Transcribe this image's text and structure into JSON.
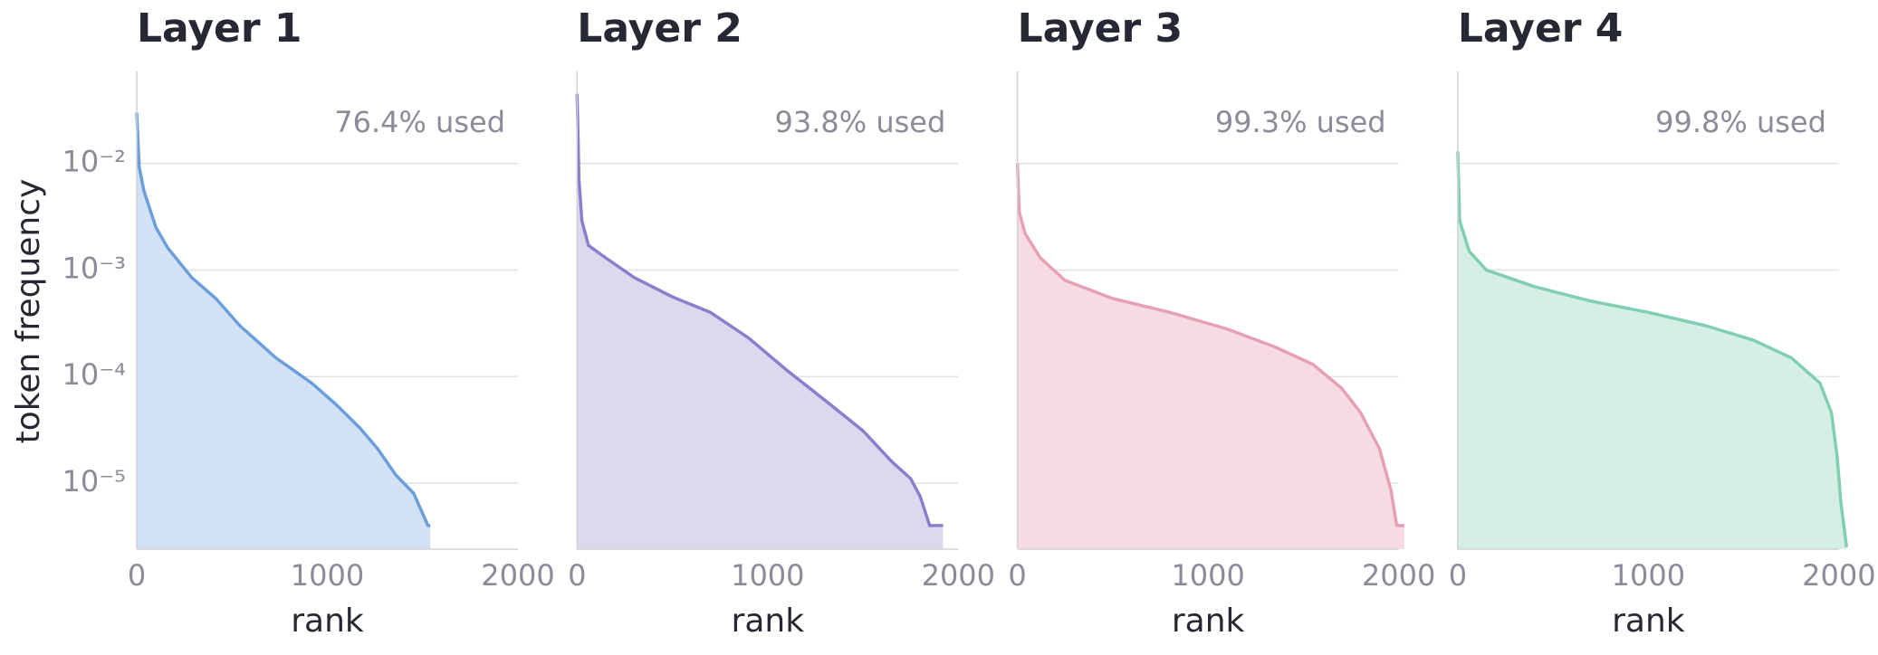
{
  "chart_data": [
    {
      "type": "line",
      "title": "Layer 1",
      "annotation": "76.4% used",
      "xlabel": "rank",
      "ylabel": "token frequency",
      "log_y": true,
      "grid": true,
      "ytick_labels": true,
      "color": "#6a9fdc",
      "fill": "#d2e1f4",
      "x": [
        0,
        13,
        38,
        101,
        164,
        289,
        415,
        541,
        730,
        918,
        1044,
        1170,
        1264,
        1358,
        1453,
        1528,
        1540
      ],
      "values": [
        0.03,
        0.0093,
        0.0055,
        0.0025,
        0.0016,
        0.00085,
        0.00054,
        0.0003,
        0.00015,
        8.7e-05,
        5.5e-05,
        3.3e-05,
        2.1e-05,
        1.2e-05,
        8e-06,
        4e-06,
        4e-06
      ],
      "xlim": [
        0,
        2000
      ],
      "xticks": [
        0,
        1000,
        2000
      ],
      "ylim": [
        2.4e-06,
        0.073
      ],
      "yticks": [
        {
          "value": 1e-05,
          "label": "10⁻⁵"
        },
        {
          "value": 0.0001,
          "label": "10⁻⁴"
        },
        {
          "value": 0.001,
          "label": "10⁻³"
        },
        {
          "value": 0.01,
          "label": "10⁻²"
        }
      ]
    },
    {
      "type": "line",
      "title": "Layer 2",
      "annotation": "93.8% used",
      "xlabel": "rank",
      "log_y": true,
      "grid": true,
      "ytick_labels": false,
      "color": "#8b7fcc",
      "fill": "#dcd8ee",
      "x": [
        0,
        10,
        25,
        60,
        150,
        300,
        500,
        700,
        900,
        1100,
        1300,
        1500,
        1650,
        1750,
        1800,
        1850,
        1920
      ],
      "values": [
        0.045,
        0.0071,
        0.0029,
        0.0017,
        0.0013,
        0.00085,
        0.00056,
        0.0004,
        0.00023,
        0.000115,
        6e-05,
        3.1e-05,
        1.6e-05,
        1.1e-05,
        7.5e-06,
        4e-06,
        4e-06
      ],
      "xlim": [
        0,
        2000
      ],
      "xticks": [
        0,
        1000,
        2000
      ],
      "ylim": [
        2.4e-06,
        0.073
      ],
      "yticks": [
        1e-05,
        0.0001,
        0.001,
        0.01
      ]
    },
    {
      "type": "line",
      "title": "Layer 3",
      "annotation": "99.3% used",
      "xlabel": "rank",
      "log_y": true,
      "grid": true,
      "ytick_labels": false,
      "color": "#e6a0b4",
      "fill": "#f6dbe2",
      "x": [
        0,
        10,
        40,
        120,
        250,
        500,
        800,
        1100,
        1350,
        1550,
        1700,
        1800,
        1900,
        1960,
        1990,
        2030
      ],
      "values": [
        0.01,
        0.0035,
        0.0022,
        0.0013,
        0.0008,
        0.00054,
        0.0004,
        0.00028,
        0.00019,
        0.00013,
        7.8e-05,
        4.6e-05,
        2.1e-05,
        8.5e-06,
        4e-06,
        4e-06
      ],
      "xlim": [
        0,
        2000
      ],
      "xticks": [
        0,
        1000,
        2000
      ],
      "ylim": [
        2.4e-06,
        0.073
      ],
      "yticks": [
        1e-05,
        0.0001,
        0.001,
        0.01
      ]
    },
    {
      "type": "line",
      "title": "Layer 4",
      "annotation": "99.8% used",
      "xlabel": "rank",
      "log_y": true,
      "grid": true,
      "ytick_labels": false,
      "color": "#7fcfb0",
      "fill": "#d6efe5",
      "x": [
        0,
        10,
        60,
        150,
        400,
        700,
        1000,
        1300,
        1550,
        1750,
        1900,
        1960,
        1990,
        2010,
        2040
      ],
      "values": [
        0.013,
        0.0029,
        0.0015,
        0.001,
        0.0007,
        0.00051,
        0.0004,
        0.0003,
        0.00022,
        0.00015,
        8.7e-05,
        4.6e-05,
        1.8e-05,
        6.6e-06,
        2.5e-06
      ],
      "xlim": [
        0,
        2000
      ],
      "xticks": [
        0,
        1000,
        2000
      ],
      "ylim": [
        2.4e-06,
        0.073
      ],
      "yticks": [
        1e-05,
        0.0001,
        0.001,
        0.01
      ]
    }
  ]
}
